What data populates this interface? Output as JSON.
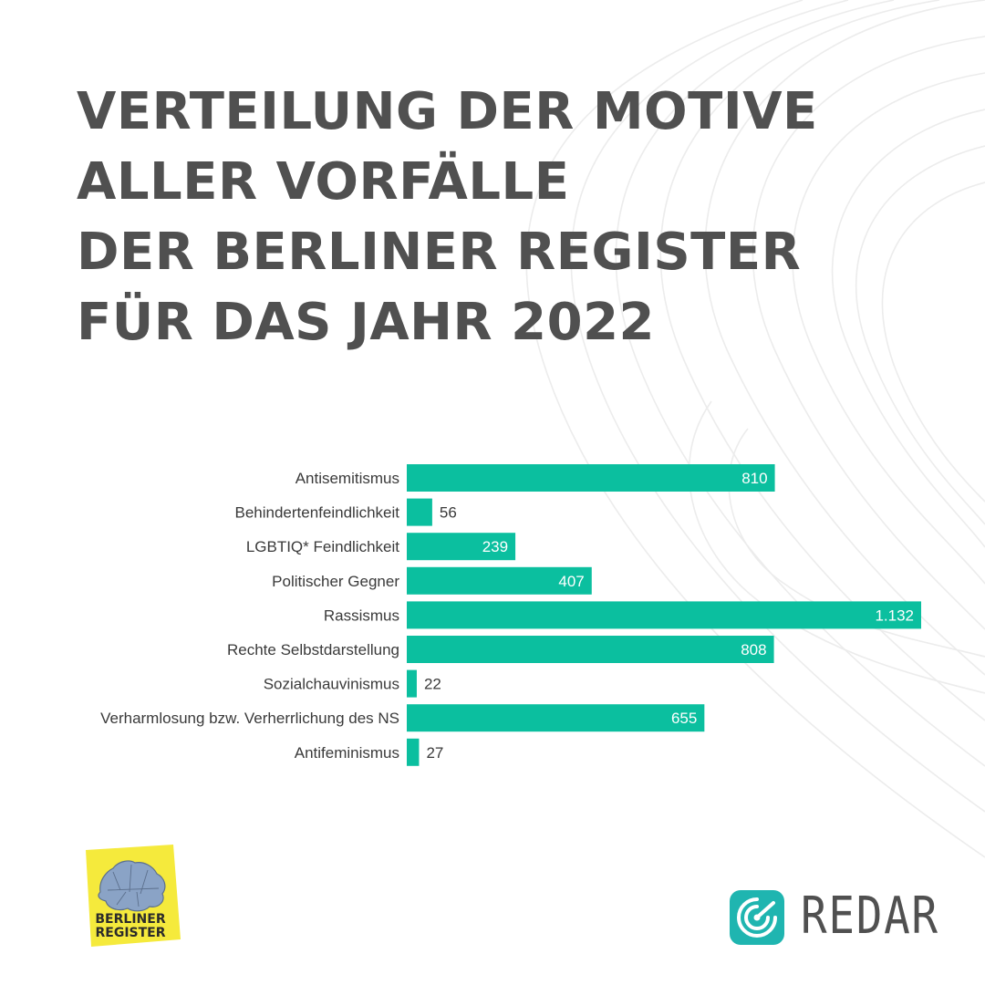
{
  "title": {
    "lines": [
      "VERTEILUNG DER MOTIVE",
      "ALLER VORFÄLLE",
      "DER BERLINER REGISTER",
      "FÜR DAS JAHR 2022"
    ]
  },
  "colors": {
    "bar": "#0bbf9f",
    "title": "#505050",
    "logo_teal": "#1fb5b0",
    "logo_yellow": "#f5ea3c"
  },
  "chart_data": {
    "type": "bar",
    "orientation": "horizontal",
    "categories": [
      "Antisemitismus",
      "Behindertenfeindlichkeit",
      "LGBTIQ* Feindlichkeit",
      "Politischer Gegner",
      "Rassismus",
      "Rechte Selbstdarstellung",
      "Sozialchauvinismus",
      "Verharmlosung bzw. Verherrlichung des NS",
      "Antifeminismus"
    ],
    "values": [
      810,
      56,
      239,
      407,
      1132,
      808,
      22,
      655,
      27
    ],
    "value_labels": [
      "810",
      "56",
      "239",
      "407",
      "1.132",
      "808",
      "22",
      "655",
      "27"
    ],
    "xlim": [
      0,
      1132
    ],
    "grid": false,
    "legend": "none"
  },
  "logos": {
    "berliner_register": {
      "line1": "BERLINER",
      "line2": "REGISTER"
    },
    "redar": {
      "wordmark": "REDAR",
      "icon": "redar-radar-icon"
    }
  }
}
